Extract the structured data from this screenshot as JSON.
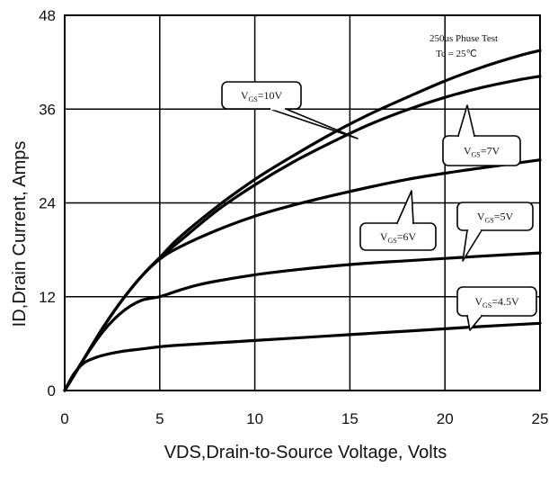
{
  "chart_data": {
    "type": "line",
    "title": "",
    "xlabel": "VDS,Drain-to-Source Voltage, Volts",
    "ylabel": "ID,Drain Current, Amps",
    "xlim": [
      0,
      25
    ],
    "ylim": [
      0,
      48
    ],
    "xticks": [
      "0",
      "5",
      "10",
      "15",
      "20",
      "25"
    ],
    "yticks": [
      "0",
      "12",
      "24",
      "36",
      "48"
    ],
    "grid": true,
    "annotation": [
      "250us Phuse Test",
      "Tc = 25℃"
    ],
    "series": [
      {
        "name": "VGS=10V",
        "label_main": "V",
        "label_sub": "GS",
        "label_rest": "=10V",
        "x": [
          0,
          1,
          2,
          3,
          4,
          5,
          6,
          8,
          10,
          12,
          14,
          16,
          18,
          20,
          22,
          24,
          25
        ],
        "y": [
          0,
          4,
          8,
          11.5,
          14.5,
          17,
          19.5,
          23.5,
          27,
          30,
          32.8,
          35.3,
          37.5,
          39.6,
          41.4,
          42.9,
          43.5
        ]
      },
      {
        "name": "VGS=7V",
        "label_main": "V",
        "label_sub": "GS",
        "label_rest": "=7V",
        "x": [
          0,
          1,
          2,
          3,
          4,
          5,
          6,
          8,
          10,
          12,
          14,
          16,
          18,
          20,
          22,
          24,
          25
        ],
        "y": [
          0,
          4,
          8,
          11.5,
          14.5,
          17,
          19,
          23,
          26.3,
          29.2,
          31.7,
          34,
          35.9,
          37.5,
          38.8,
          39.8,
          40.2
        ]
      },
      {
        "name": "VGS=6V",
        "label_main": "V",
        "label_sub": "GS",
        "label_rest": "=6V",
        "x": [
          0,
          1,
          2,
          3,
          4,
          5,
          6,
          7,
          8,
          10,
          12,
          14,
          16,
          18,
          20,
          22,
          25
        ],
        "y": [
          0,
          4,
          7.5,
          10,
          11.5,
          12,
          12.8,
          13.5,
          14,
          14.8,
          15.4,
          15.9,
          16.3,
          16.6,
          16.9,
          17.2,
          17.6
        ]
      },
      {
        "name": "VGS=5V",
        "label_main": "V",
        "label_sub": "GS",
        "label_rest": "=5V",
        "x": [
          0,
          1,
          2,
          3,
          4,
          5,
          6,
          8,
          10,
          12,
          14,
          16,
          18,
          20,
          22,
          25
        ],
        "y": [
          0,
          4,
          8,
          11.5,
          14.5,
          16.8,
          18.3,
          20.5,
          22.3,
          23.7,
          24.9,
          26,
          27,
          27.8,
          28.5,
          29.5
        ]
      },
      {
        "name": "VGS=4.5V",
        "label_main": "V",
        "label_sub": "GS",
        "label_rest": "=4.5V",
        "x": [
          0,
          0.5,
          1,
          1.5,
          2,
          3,
          4,
          5,
          6,
          8,
          10,
          12,
          14,
          16,
          18,
          20,
          22,
          25
        ],
        "y": [
          0,
          2.2,
          3.5,
          4.1,
          4.5,
          5,
          5.3,
          5.6,
          5.8,
          6.1,
          6.4,
          6.7,
          7,
          7.3,
          7.6,
          7.9,
          8.2,
          8.6
        ]
      }
    ]
  }
}
